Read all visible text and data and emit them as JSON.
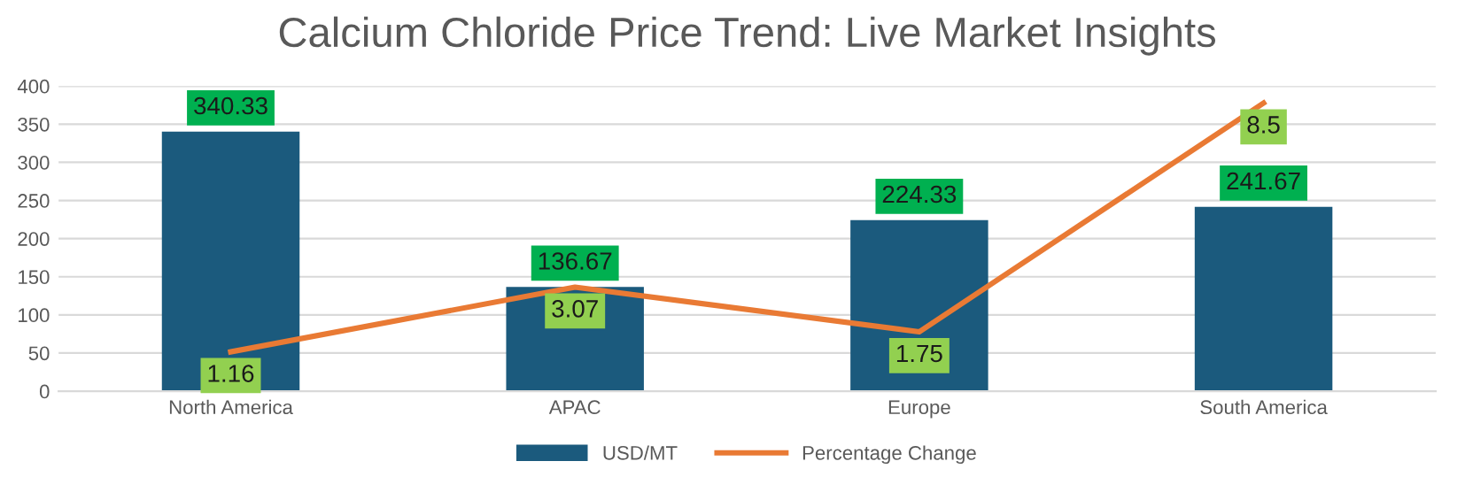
{
  "chart_data": {
    "type": "bar",
    "title": "Calcium Chloride Price Trend: Live Market Insights",
    "categories": [
      "North America",
      "APAC",
      "Europe",
      "South America"
    ],
    "series": [
      {
        "name": "USD/MT",
        "color": "#1b5a7d",
        "values": [
          340.33,
          136.67,
          224.33,
          241.67
        ]
      },
      {
        "name": "Percentage Change",
        "type": "line",
        "axis": "y2",
        "color": "#e97a34",
        "values": [
          1.16,
          3.07,
          1.75,
          8.5
        ]
      }
    ],
    "ylim": [
      0,
      400
    ],
    "yticks": [
      0,
      50,
      100,
      150,
      200,
      250,
      300,
      350,
      400
    ],
    "y2lim": [
      0,
      9
    ],
    "data_labels": true,
    "grid": "y",
    "legend": "bottom",
    "marker": "none"
  }
}
